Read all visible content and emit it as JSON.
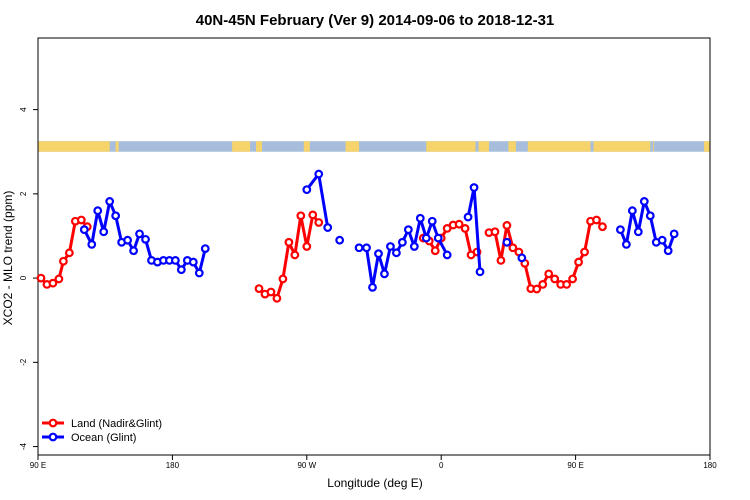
{
  "chart_data": {
    "type": "line",
    "title": "40N-45N February (Ver 9)   2014-09-06 to 2018-12-31",
    "xlabel": "Longitude (deg E)",
    "ylabel": "XCO2 - MLO trend (ppm)",
    "xlim": [
      90,
      540
    ],
    "ylim": [
      -4.2,
      5.7
    ],
    "x_ticks": [
      {
        "value": 90,
        "label": "90 E"
      },
      {
        "value": 180,
        "label": "180"
      },
      {
        "value": 270,
        "label": "90 W"
      },
      {
        "value": 360,
        "label": "0"
      },
      {
        "value": 450,
        "label": "90 E"
      },
      {
        "value": 540,
        "label": "180"
      }
    ],
    "y_ticks": [
      -4,
      -2,
      0,
      2,
      4
    ],
    "grid": false,
    "legend_position": "bottom-left",
    "surface_band": {
      "y_range": [
        3.0,
        3.25
      ],
      "land_color": "#F6D36B",
      "ocean_color": "#A6BEDB",
      "land_intervals": [
        [
          90,
          138
        ],
        [
          142,
          144
        ],
        [
          220,
          232
        ],
        [
          236,
          240
        ],
        [
          268,
          272
        ],
        [
          296,
          305
        ],
        [
          350,
          383
        ],
        [
          385,
          392
        ],
        [
          405,
          410
        ],
        [
          418,
          460
        ],
        [
          462,
          500
        ],
        [
          502,
          502.5
        ],
        [
          536,
          540
        ]
      ]
    },
    "series": [
      {
        "name": "Land (Nadir&Glint)",
        "color": "#FF0000",
        "segments": [
          [
            [
              92,
              0.0
            ],
            [
              96,
              -0.15
            ],
            [
              100,
              -0.12
            ],
            [
              104,
              -0.02
            ],
            [
              107,
              0.4
            ],
            [
              111,
              0.6
            ],
            [
              115,
              1.35
            ],
            [
              119,
              1.38
            ],
            [
              123,
              1.22
            ]
          ],
          [
            [
              238,
              -0.25
            ],
            [
              242,
              -0.38
            ],
            [
              246,
              -0.33
            ],
            [
              250,
              -0.48
            ],
            [
              254,
              -0.02
            ],
            [
              258,
              0.85
            ],
            [
              262,
              0.55
            ],
            [
              266,
              1.48
            ],
            [
              270,
              0.75
            ],
            [
              274,
              1.5
            ],
            [
              278,
              1.32
            ]
          ],
          [
            [
              348,
              0.95
            ],
            [
              352,
              0.88
            ],
            [
              356,
              0.65
            ],
            [
              360,
              0.95
            ],
            [
              364,
              1.18
            ],
            [
              368,
              1.26
            ],
            [
              372,
              1.28
            ],
            [
              376,
              1.18
            ],
            [
              380,
              0.55
            ],
            [
              384,
              0.62
            ]
          ],
          [
            [
              392,
              1.08
            ],
            [
              396,
              1.1
            ],
            [
              400,
              0.42
            ],
            [
              404,
              1.25
            ],
            [
              408,
              0.72
            ],
            [
              412,
              0.62
            ],
            [
              416,
              0.35
            ],
            [
              420,
              -0.25
            ],
            [
              424,
              -0.26
            ],
            [
              428,
              -0.15
            ],
            [
              432,
              0.1
            ],
            [
              436,
              -0.02
            ],
            [
              440,
              -0.15
            ],
            [
              444,
              -0.15
            ],
            [
              448,
              -0.02
            ],
            [
              452,
              0.38
            ],
            [
              456,
              0.62
            ],
            [
              460,
              1.35
            ],
            [
              464,
              1.38
            ],
            [
              468,
              1.22
            ]
          ]
        ]
      },
      {
        "name": "Ocean (Glint)",
        "color": "#0000FF",
        "segments": [
          [
            [
              121,
              1.15
            ],
            [
              126,
              0.8
            ],
            [
              130,
              1.6
            ],
            [
              134,
              1.1
            ],
            [
              138,
              1.82
            ],
            [
              142,
              1.48
            ],
            [
              146,
              0.85
            ],
            [
              150,
              0.9
            ],
            [
              154,
              0.65
            ],
            [
              158,
              1.05
            ],
            [
              162,
              0.92
            ],
            [
              166,
              0.42
            ],
            [
              170,
              0.38
            ],
            [
              174,
              0.42
            ],
            [
              178,
              0.42
            ],
            [
              182,
              0.42
            ],
            [
              186,
              0.2
            ],
            [
              190,
              0.42
            ],
            [
              194,
              0.38
            ],
            [
              198,
              0.12
            ],
            [
              202,
              0.7
            ]
          ],
          [
            [
              270,
              2.1
            ],
            [
              278,
              2.47
            ],
            [
              284,
              1.2
            ]
          ],
          [
            [
              292,
              0.9
            ]
          ],
          [
            [
              305,
              0.72
            ],
            [
              310,
              0.72
            ],
            [
              314,
              -0.22
            ],
            [
              318,
              0.58
            ],
            [
              322,
              0.1
            ],
            [
              326,
              0.75
            ],
            [
              330,
              0.6
            ],
            [
              334,
              0.85
            ],
            [
              338,
              1.15
            ],
            [
              342,
              0.75
            ],
            [
              346,
              1.42
            ],
            [
              350,
              0.95
            ],
            [
              354,
              1.35
            ],
            [
              358,
              0.95
            ],
            [
              364,
              0.55
            ]
          ],
          [
            [
              378,
              1.45
            ],
            [
              382,
              2.15
            ],
            [
              386,
              0.15
            ]
          ],
          [
            [
              404,
              0.85
            ]
          ],
          [
            [
              414,
              0.48
            ]
          ],
          [
            [
              480,
              1.15
            ],
            [
              484,
              0.8
            ],
            [
              488,
              1.6
            ],
            [
              492,
              1.1
            ],
            [
              496,
              1.82
            ],
            [
              500,
              1.48
            ],
            [
              504,
              0.85
            ],
            [
              508,
              0.9
            ],
            [
              512,
              0.65
            ],
            [
              516,
              1.05
            ]
          ]
        ]
      }
    ]
  }
}
